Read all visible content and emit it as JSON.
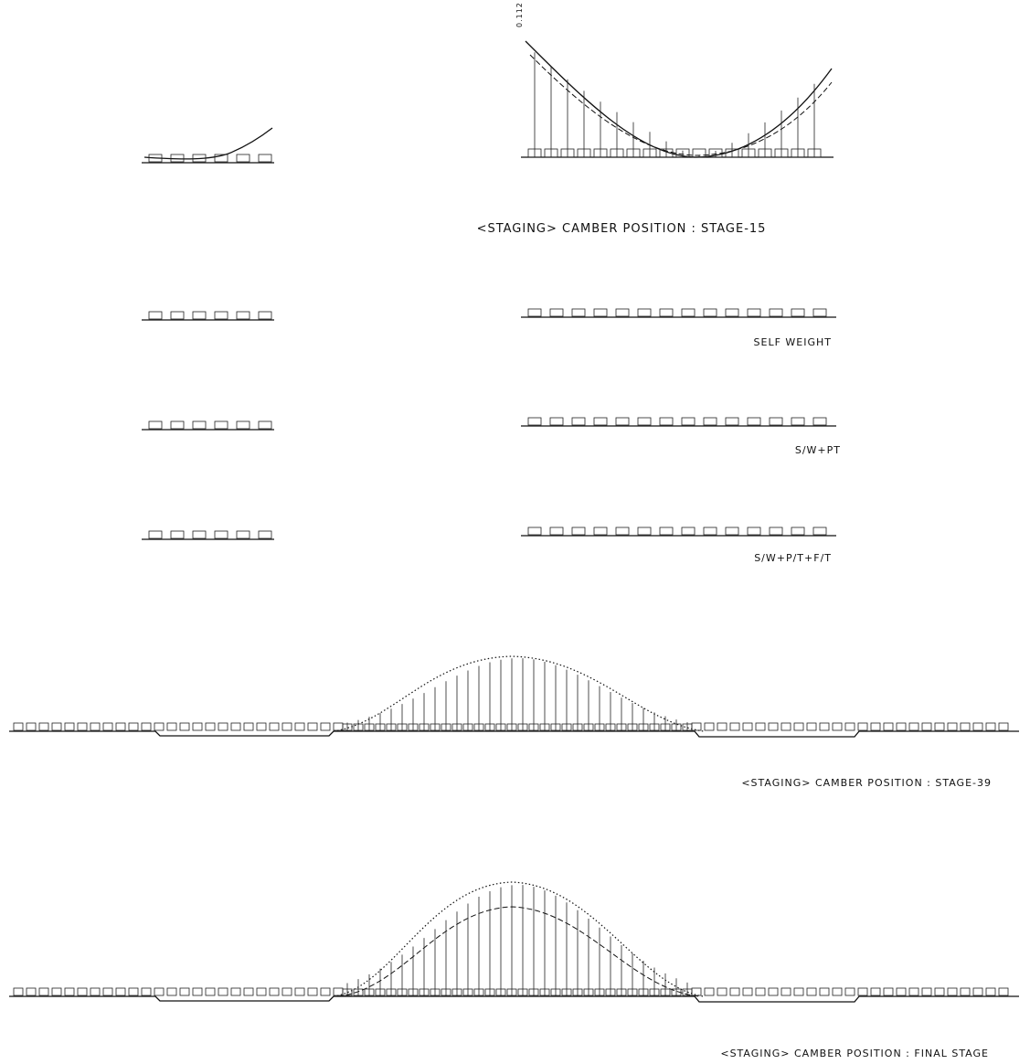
{
  "captions": {
    "stage_15": "<STAGING> CAMBER POSITION : STAGE-15",
    "self_weight": "SELF WEIGHT",
    "sw_pt": "S/W+PT",
    "sw_pt_ft": "S/W+P/T+F/T",
    "stage_39": "<STAGING> CAMBER POSITION : STAGE-39",
    "final_stage": "<STAGING> CAMBER POSITION : FINAL STAGE"
  },
  "annotations": {
    "top_value": "0.112"
  }
}
